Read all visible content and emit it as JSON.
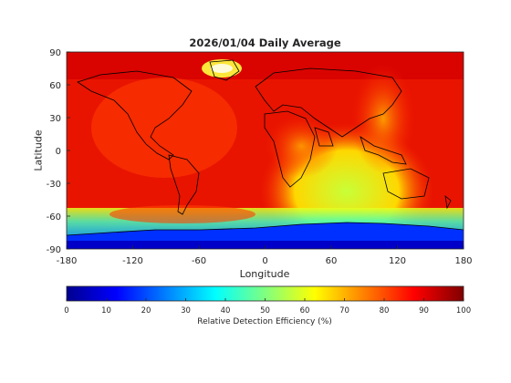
{
  "chart_data": {
    "type": "heatmap",
    "title": "2026/01/04 Daily Average",
    "xlabel": "Longitude",
    "ylabel": "Latitude",
    "xlim": [
      -180,
      180
    ],
    "ylim": [
      -90,
      90
    ],
    "xticks": [
      "-180",
      "-120",
      "-60",
      "0",
      "60",
      "120",
      "180"
    ],
    "yticks": [
      "90",
      "60",
      "30",
      "0",
      "-30",
      "-60",
      "-90"
    ],
    "colorbar": {
      "label": "Relative Detection Efficiency (%)",
      "range": [
        0,
        100
      ],
      "ticks": [
        "0",
        "10",
        "20",
        "30",
        "40",
        "50",
        "60",
        "70",
        "80",
        "90",
        "100"
      ],
      "colormap": "jet"
    },
    "regions": [
      {
        "name": "background",
        "value": 92
      },
      {
        "name": "southern-ocean-band",
        "value": 40
      },
      {
        "name": "antarctica",
        "value": 12
      },
      {
        "name": "indian-ocean-plume",
        "value": 65
      },
      {
        "name": "greenland",
        "value": 60
      }
    ]
  }
}
